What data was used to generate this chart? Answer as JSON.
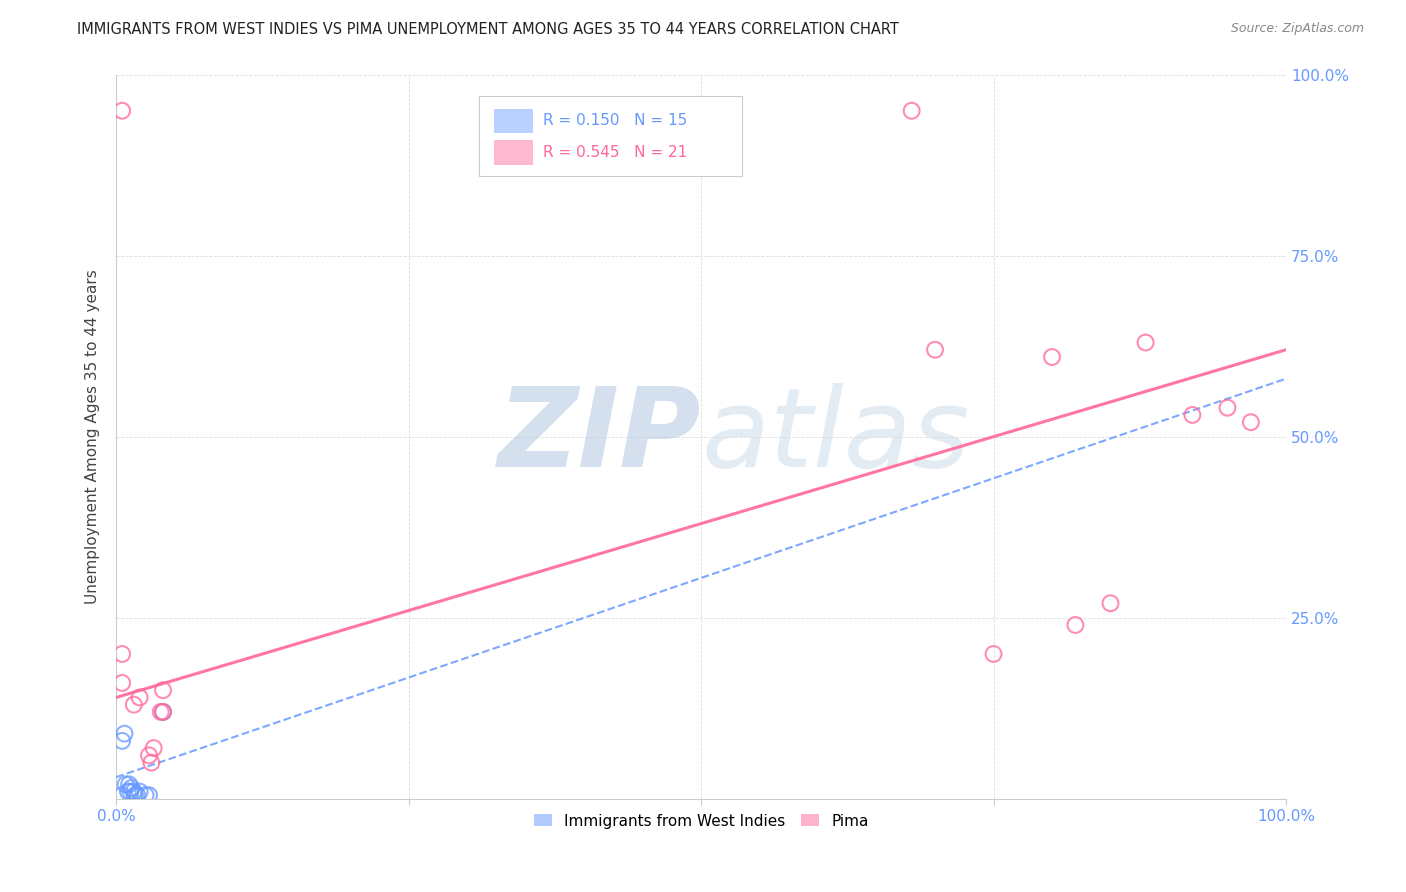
{
  "title": "IMMIGRANTS FROM WEST INDIES VS PIMA UNEMPLOYMENT AMONG AGES 35 TO 44 YEARS CORRELATION CHART",
  "source": "Source: ZipAtlas.com",
  "ylabel_label": "Unemployment Among Ages 35 to 44 years",
  "legend_label1": "Immigrants from West Indies",
  "legend_label2": "Pima",
  "r1": 0.15,
  "n1": 15,
  "r2": 0.545,
  "n2": 21,
  "xlim": [
    0.0,
    1.0
  ],
  "ylim": [
    0.0,
    1.0
  ],
  "xticks": [
    0.0,
    0.25,
    0.5,
    0.75,
    1.0
  ],
  "yticks": [
    0.0,
    0.25,
    0.5,
    0.75,
    1.0
  ],
  "xtick_labels": [
    "0.0%",
    "",
    "",
    "",
    "100.0%"
  ],
  "right_ytick_labels": [
    "",
    "25.0%",
    "50.0%",
    "75.0%",
    "100.0%"
  ],
  "blue_color": "#6699ff",
  "pink_color": "#ff6699",
  "blue_scatter": [
    [
      0.005,
      0.08
    ],
    [
      0.007,
      0.09
    ],
    [
      0.008,
      0.02
    ],
    [
      0.01,
      0.01
    ],
    [
      0.011,
      0.02
    ],
    [
      0.012,
      0.01
    ],
    [
      0.013,
      0.015
    ],
    [
      0.015,
      0.01
    ],
    [
      0.016,
      0.005
    ],
    [
      0.018,
      0.005
    ],
    [
      0.02,
      0.01
    ],
    [
      0.025,
      0.005
    ],
    [
      0.028,
      0.005
    ],
    [
      0.04,
      0.12
    ],
    [
      0.005,
      0.005
    ]
  ],
  "pink_scatter": [
    [
      0.005,
      0.95
    ],
    [
      0.005,
      0.2
    ],
    [
      0.005,
      0.16
    ],
    [
      0.015,
      0.13
    ],
    [
      0.02,
      0.14
    ],
    [
      0.028,
      0.06
    ],
    [
      0.03,
      0.05
    ],
    [
      0.032,
      0.07
    ],
    [
      0.038,
      0.12
    ],
    [
      0.04,
      0.15
    ],
    [
      0.04,
      0.12
    ],
    [
      0.68,
      0.95
    ],
    [
      0.7,
      0.62
    ],
    [
      0.75,
      0.2
    ],
    [
      0.8,
      0.61
    ],
    [
      0.82,
      0.24
    ],
    [
      0.85,
      0.27
    ],
    [
      0.88,
      0.63
    ],
    [
      0.92,
      0.53
    ],
    [
      0.95,
      0.54
    ],
    [
      0.97,
      0.52
    ]
  ],
  "blue_trendline_x": [
    0.0,
    1.0
  ],
  "blue_trendline_y": [
    0.03,
    0.58
  ],
  "pink_trendline_x": [
    0.0,
    1.0
  ],
  "pink_trendline_y": [
    0.14,
    0.62
  ],
  "watermark_zip": "ZIP",
  "watermark_atlas": "atlas",
  "background_color": "#ffffff",
  "grid_color": "#dddddd"
}
